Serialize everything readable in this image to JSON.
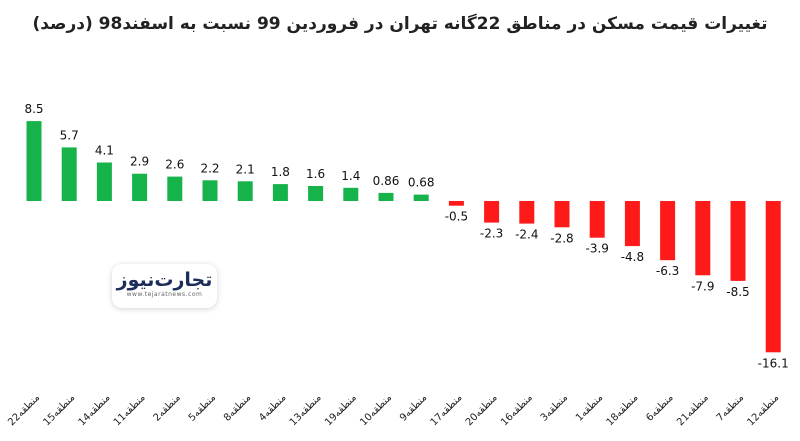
{
  "chart_data": {
    "type": "bar",
    "title": "تغییرات قیمت مسکن در مناطق 22گانه تهران در فروردین 99 نسبت به اسفند98 (درصد)",
    "categories": [
      "منطقه22",
      "منطقه15",
      "منطقه14",
      "منطقه11",
      "منطقه2",
      "منطقه5",
      "منطقه8",
      "منطقه4",
      "منطقه13",
      "منطقه19",
      "منطقه10",
      "منطقه9",
      "منطقه17",
      "منطقه20",
      "منطقه16",
      "منطقه3",
      "منطقه1",
      "منطقه18",
      "منطقه6",
      "منطقه21",
      "منطقه7",
      "منطقه12"
    ],
    "values": [
      8.5,
      5.7,
      4.1,
      2.9,
      2.6,
      2.2,
      2.1,
      1.8,
      1.6,
      1.4,
      0.86,
      0.68,
      -0.5,
      -2.3,
      -2.4,
      -2.8,
      -3.9,
      -4.8,
      -6.3,
      -7.9,
      -8.5,
      -16.1
    ],
    "value_labels": [
      "8.5",
      "5.7",
      "4.1",
      "2.9",
      "2.6",
      "2.2",
      "2.1",
      "1.8",
      "1.6",
      "1.4",
      "0.86",
      "0.68",
      "-0.5",
      "-2.3",
      "-2.4",
      "-2.8",
      "-3.9",
      "-4.8",
      "-6.3",
      "-7.9",
      "-8.5",
      "-16.1"
    ],
    "positive_color": "#16b34a",
    "negative_color": "#ff1a1a",
    "xlabel": "",
    "ylabel": "",
    "grid": false,
    "legend": "none"
  },
  "watermark": {
    "logo_text": "تجارت‌نیوز",
    "url": "www.tejaratnews.com"
  }
}
